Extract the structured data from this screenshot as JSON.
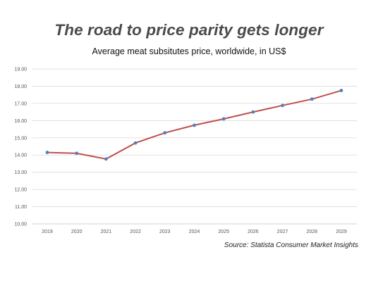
{
  "title": "The road to price parity gets longer",
  "subtitle": "Average meat subsitutes price, worldwide, in US$",
  "source": "Source: Statista Consumer Market Insights",
  "chart_data": {
    "type": "line",
    "x": [
      "2019",
      "2020",
      "2021",
      "2022",
      "2023",
      "2024",
      "2025",
      "2026",
      "2027",
      "2028",
      "2029"
    ],
    "series": [
      {
        "values": [
          14.15,
          14.1,
          13.77,
          14.7,
          15.29,
          15.73,
          16.1,
          16.5,
          16.88,
          17.25,
          17.75
        ]
      }
    ],
    "y_ticks": [
      "10.00",
      "11.00",
      "12.00",
      "13.00",
      "14.00",
      "15.00",
      "16.00",
      "17.00",
      "18.00",
      "19.00"
    ],
    "ylim": [
      10,
      19
    ],
    "grid": true,
    "line_color": "#c0504d",
    "marker_color": "#4f81bd",
    "grid_color": "#d9d9d9"
  }
}
